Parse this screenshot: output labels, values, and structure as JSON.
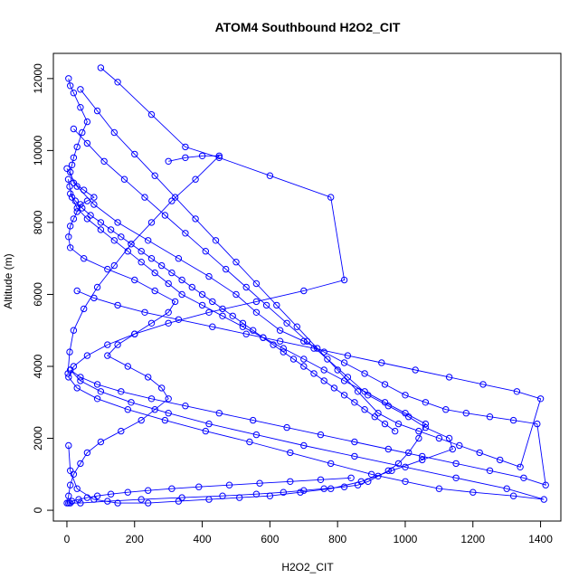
{
  "chart_data": {
    "type": "scatter",
    "title": "ATOM4 Southbound H2O2_CIT",
    "xlabel": "H2O2_CIT",
    "ylabel": "Altitude (m)",
    "xlim": [
      -40,
      1460
    ],
    "ylim": [
      -300,
      12700
    ],
    "x_ticks": [
      0,
      200,
      400,
      600,
      800,
      1000,
      1200,
      1400
    ],
    "y_ticks": [
      0,
      2000,
      4000,
      6000,
      8000,
      10000,
      12000
    ],
    "grid": false,
    "legend": "none",
    "marker": "open-circle",
    "connected": true,
    "color": "#0000ff",
    "series": [
      {
        "x": [
          5,
          10,
          20,
          40,
          60,
          45,
          30,
          20,
          15,
          10,
          20,
          50,
          80,
          60,
          40,
          30,
          20,
          10,
          5,
          10,
          50,
          120,
          200,
          260,
          320,
          300,
          250,
          200,
          150,
          120,
          180,
          240,
          280,
          300,
          260,
          220,
          160,
          100,
          60,
          40,
          20,
          10,
          5,
          0,
          10,
          40,
          120,
          220,
          340,
          460,
          560,
          640,
          700,
          760,
          820,
          860,
          890,
          920,
          950,
          980,
          1010,
          1040,
          1060,
          1000,
          940,
          880,
          820,
          760,
          700,
          640,
          580,
          520,
          460,
          400,
          340,
          300,
          260,
          220,
          180,
          140,
          100,
          60,
          30,
          15,
          8,
          4
        ],
        "y": [
          12000,
          11800,
          11600,
          11200,
          10800,
          10500,
          10100,
          9800,
          9600,
          9400,
          9100,
          8900,
          8700,
          8600,
          8500,
          8300,
          8100,
          7900,
          7600,
          7300,
          7000,
          6700,
          6400,
          6100,
          5800,
          5500,
          5200,
          4900,
          4600,
          4300,
          4000,
          3700,
          3400,
          3100,
          2800,
          2500,
          2200,
          1900,
          1600,
          1300,
          1000,
          700,
          400,
          200,
          200,
          200,
          250,
          300,
          350,
          400,
          450,
          500,
          550,
          600,
          650,
          700,
          800,
          950,
          1100,
          1300,
          1600,
          2000,
          2400,
          2700,
          3000,
          3300,
          3600,
          3900,
          4200,
          4500,
          4800,
          5100,
          5400,
          5700,
          6000,
          6300,
          6600,
          6900,
          7200,
          7500,
          7800,
          8100,
          8400,
          8700,
          9000,
          9200
        ]
      },
      {
        "x": [
          100,
          150,
          250,
          350,
          450,
          600,
          780,
          820,
          700,
          560,
          420,
          300,
          200,
          120,
          60,
          20,
          5,
          30,
          90,
          180,
          290,
          410,
          540,
          660,
          780,
          900,
          1000,
          1100,
          1200,
          1320,
          1410,
          1300,
          1150,
          1000,
          850,
          700,
          560,
          420,
          300,
          190,
          100,
          40,
          10
        ],
        "y": [
          12300,
          11900,
          11000,
          10100,
          9800,
          9300,
          8700,
          6400,
          6100,
          5800,
          5500,
          5200,
          4900,
          4600,
          4300,
          4000,
          3700,
          3400,
          3100,
          2800,
          2500,
          2200,
          1900,
          1600,
          1300,
          1000,
          800,
          600,
          500,
          400,
          300,
          600,
          900,
          1200,
          1500,
          1800,
          2100,
          2400,
          2700,
          3000,
          3300,
          3600,
          3900
        ]
      },
      {
        "x": [
          20,
          60,
          110,
          170,
          230,
          290,
          350,
          410,
          470,
          530,
          590,
          650,
          710,
          770,
          830,
          890,
          950,
          1010,
          1060,
          1130,
          1140,
          1050,
          960,
          870,
          780,
          690,
          600,
          510,
          420,
          330,
          240,
          150,
          80,
          30,
          10,
          5
        ],
        "y": [
          10600,
          10200,
          9700,
          9200,
          8700,
          8200,
          7700,
          7200,
          6700,
          6200,
          5700,
          5200,
          4700,
          4200,
          3700,
          3200,
          2900,
          2600,
          2300,
          2000,
          1700,
          1400,
          1100,
          800,
          600,
          500,
          400,
          350,
          300,
          250,
          200,
          200,
          300,
          600,
          1100,
          1800
        ]
      },
      {
        "x": [
          0,
          30,
          80,
          150,
          240,
          330,
          420,
          500,
          560,
          630,
          700,
          760,
          820,
          880,
          940,
          1000,
          1060,
          1120,
          1180,
          1250,
          1320,
          1390,
          1415,
          1350,
          1250,
          1150,
          1050,
          950,
          850,
          750,
          650,
          550,
          450,
          350,
          250,
          160,
          90,
          40,
          10
        ],
        "y": [
          9500,
          9000,
          8500,
          8000,
          7500,
          7000,
          6500,
          6000,
          5500,
          5000,
          4700,
          4400,
          4100,
          3800,
          3500,
          3200,
          3000,
          2800,
          2700,
          2600,
          2500,
          2400,
          700,
          900,
          1100,
          1300,
          1500,
          1700,
          1900,
          2100,
          2300,
          2500,
          2700,
          2900,
          3100,
          3300,
          3500,
          3700,
          3900
        ]
      },
      {
        "x": [
          40,
          90,
          140,
          200,
          260,
          320,
          380,
          440,
          500,
          560,
          620,
          680,
          740,
          800,
          860,
          920,
          980,
          1040,
          1100,
          1160,
          1220,
          1280,
          1340,
          1400,
          1330,
          1230,
          1130,
          1030,
          930,
          830,
          730,
          630,
          530,
          430,
          330,
          230,
          150,
          80,
          30
        ],
        "y": [
          11700,
          11100,
          10500,
          9900,
          9300,
          8700,
          8100,
          7500,
          6900,
          6300,
          5700,
          5100,
          4500,
          3900,
          3300,
          2700,
          2400,
          2200,
          2000,
          1800,
          1600,
          1400,
          1200,
          3100,
          3300,
          3500,
          3700,
          3900,
          4100,
          4300,
          4500,
          4700,
          4900,
          5100,
          5300,
          5500,
          5700,
          5900,
          6100
        ]
      },
      {
        "x": [
          10,
          25,
          45,
          70,
          100,
          130,
          160,
          190,
          220,
          250,
          280,
          310,
          340,
          370,
          400,
          430,
          460,
          490,
          520,
          550,
          580,
          610,
          640,
          670,
          700,
          730,
          760,
          790,
          820,
          850,
          880,
          910,
          940,
          970
        ],
        "y": [
          8800,
          8600,
          8400,
          8200,
          8000,
          7800,
          7600,
          7400,
          7200,
          7000,
          6800,
          6600,
          6400,
          6200,
          6000,
          5800,
          5600,
          5400,
          5200,
          5000,
          4800,
          4600,
          4400,
          4200,
          4000,
          3800,
          3600,
          3400,
          3200,
          3000,
          2800,
          2600,
          2400,
          2200
        ]
      },
      {
        "x": [
          300,
          350,
          400,
          450,
          380,
          310,
          250,
          190,
          140,
          90,
          50,
          20,
          8,
          3
        ],
        "y": [
          9700,
          9800,
          9850,
          9850,
          9200,
          8600,
          8000,
          7400,
          6800,
          6200,
          5600,
          5000,
          4400,
          3800
        ]
      },
      {
        "x": [
          5,
          15,
          35,
          60,
          90,
          130,
          180,
          240,
          310,
          390,
          480,
          570,
          660,
          750,
          840
        ],
        "y": [
          200,
          250,
          300,
          350,
          400,
          450,
          500,
          550,
          600,
          650,
          700,
          750,
          800,
          850,
          900
        ]
      }
    ]
  }
}
